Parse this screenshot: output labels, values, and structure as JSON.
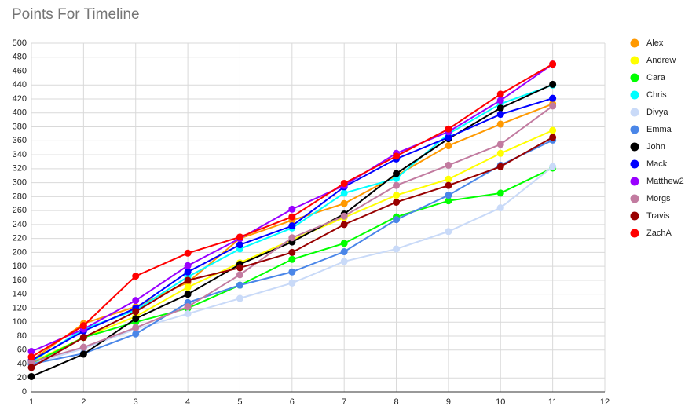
{
  "chart_data": {
    "type": "line",
    "title": "Points For Timeline",
    "x": [
      1,
      2,
      3,
      4,
      5,
      6,
      7,
      8,
      9,
      10,
      11
    ],
    "xlim": [
      1,
      12
    ],
    "xticks": [
      1,
      2,
      3,
      4,
      5,
      6,
      7,
      8,
      9,
      10,
      11,
      12
    ],
    "ylim": [
      0,
      500
    ],
    "yticks": [
      0,
      20,
      40,
      60,
      80,
      100,
      120,
      140,
      160,
      180,
      200,
      220,
      240,
      260,
      280,
      300,
      320,
      340,
      360,
      380,
      400,
      420,
      440,
      460,
      480,
      500
    ],
    "grid": true,
    "legend": "right",
    "series": [
      {
        "name": "Alex",
        "color": "#ff9900",
        "values": [
          45,
          98,
          122,
          157,
          220,
          246,
          270,
          310,
          353,
          384,
          413
        ]
      },
      {
        "name": "Andrew",
        "color": "#ffff00",
        "values": [
          42,
          78,
          108,
          150,
          185,
          218,
          250,
          282,
          305,
          342,
          375
        ]
      },
      {
        "name": "Cara",
        "color": "#00ff00",
        "values": [
          40,
          78,
          100,
          120,
          153,
          190,
          213,
          251,
          274,
          285,
          321
        ]
      },
      {
        "name": "Chris",
        "color": "#00ffff",
        "values": [
          43,
          90,
          117,
          165,
          205,
          235,
          285,
          306,
          370,
          413,
          440
        ]
      },
      {
        "name": "Divya",
        "color": "#c9daf8",
        "values": [
          40,
          62,
          90,
          112,
          134,
          156,
          187,
          205,
          230,
          264,
          323
        ]
      },
      {
        "name": "Emma",
        "color": "#4a86e8",
        "values": [
          40,
          55,
          83,
          128,
          153,
          172,
          201,
          247,
          282,
          325,
          361
        ]
      },
      {
        "name": "John",
        "color": "#000000",
        "values": [
          22,
          54,
          105,
          140,
          183,
          215,
          255,
          313,
          363,
          407,
          441
        ]
      },
      {
        "name": "Mack",
        "color": "#0000ff",
        "values": [
          45,
          87,
          120,
          172,
          211,
          238,
          294,
          334,
          365,
          398,
          421
        ]
      },
      {
        "name": "Matthew2",
        "color": "#9900ff",
        "values": [
          58,
          90,
          131,
          181,
          220,
          262,
          296,
          342,
          373,
          418,
          470
        ]
      },
      {
        "name": "Morgs",
        "color": "#c27ba0",
        "values": [
          43,
          64,
          92,
          122,
          168,
          221,
          252,
          296,
          325,
          355,
          410
        ]
      },
      {
        "name": "Travis",
        "color": "#980000",
        "values": [
          35,
          78,
          115,
          160,
          178,
          200,
          240,
          272,
          296,
          323,
          365
        ]
      },
      {
        "name": "ZachA",
        "color": "#ff0000",
        "values": [
          50,
          95,
          166,
          199,
          222,
          251,
          299,
          338,
          377,
          427,
          470
        ]
      }
    ]
  }
}
